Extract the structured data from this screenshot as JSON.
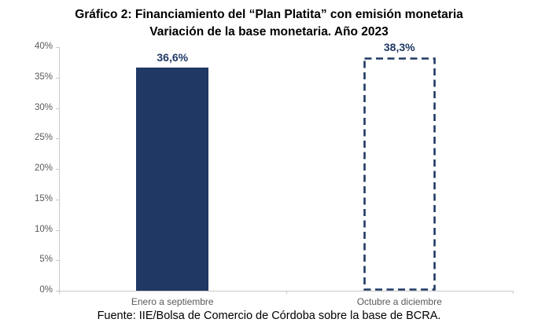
{
  "title": {
    "line1": "Gráfico 2: Financiamiento del “Plan Platita” con emisión monetaria",
    "line2": "Variación de la base monetaria. Año 2023"
  },
  "source": "Fuente: IIE/Bolsa de Comercio de Córdoba sobre la base de BCRA.",
  "colors": {
    "navy": "#1F3864",
    "axis": "#C9C9C9",
    "tick_label": "#595959",
    "category_label": "#595959",
    "title_text": "#000000",
    "background": "#FFFFFF"
  },
  "chart_data": {
    "type": "bar",
    "title": "Gráfico 2: Financiamiento del “Plan Platita” con emisión monetaria — Variación de la base monetaria. Año 2023",
    "categories": [
      "Enero a septiembre",
      "Octubre a diciembre"
    ],
    "values": [
      36.6,
      38.3
    ],
    "value_labels": [
      "36,6%",
      "38,3%"
    ],
    "bar_styles": [
      "solid",
      "dashed"
    ],
    "unit": "%",
    "ylim": [
      0,
      40
    ],
    "ytick_step": 5,
    "ytick_labels": [
      "0%",
      "5%",
      "10%",
      "15%",
      "20%",
      "25%",
      "30%",
      "35%",
      "40%"
    ],
    "grid": false,
    "legend": "none"
  }
}
